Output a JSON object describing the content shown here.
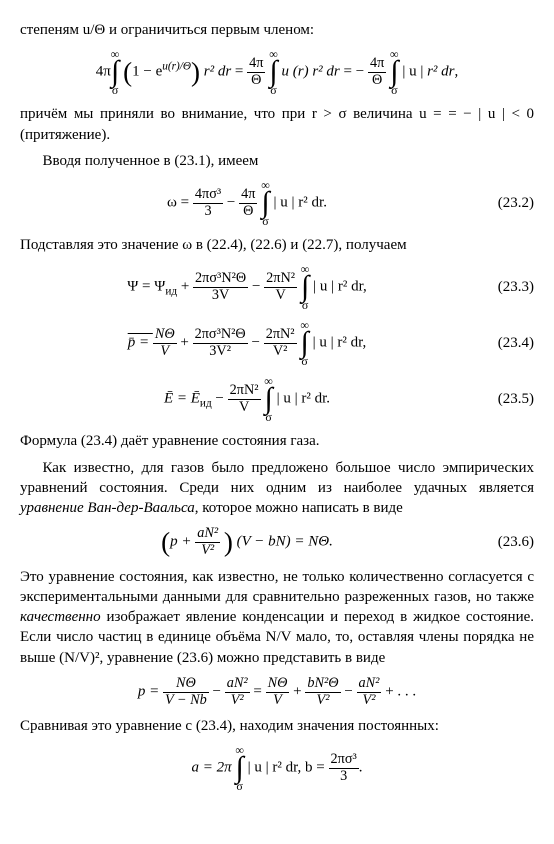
{
  "para1": "степеням u/Θ и ограничиться первым членом:",
  "eq1": {
    "lhs_pref": "4π",
    "int_top": "∞",
    "int_bot": "σ",
    "paren_in": "1 − e",
    "exp": "u(r)/Θ",
    "r2dr": "r² dr",
    "mid": " = ",
    "frac_a_num": "4π",
    "frac_a_den": "Θ",
    "u_r": "u (r)",
    "eqm": " = −",
    "abs_u": "| u |"
  },
  "para2a": "причём мы приняли во внимание, что при r > σ величина u = = − | u | < 0 (притяжение).",
  "para2b": "Вводя полученное в (23.1), имеем",
  "eq2": {
    "omega": "ω = ",
    "f1_num": "4πσ³",
    "f1_den": "3",
    "minus": " − ",
    "f2_num": "4π",
    "f2_den": "Θ",
    "int_top": "∞",
    "int_bot": "σ",
    "tail": "| u | r² dr.",
    "num": "(23.2)"
  },
  "para3": "Подставляя это значение ω в (22.4), (22.6) и (22.7), получаем",
  "eq3": {
    "lhs": "Ψ = Ψ",
    "sub": "ид",
    "plus": " + ",
    "f1_num": "2πσ³N²Θ",
    "f1_den": "3V",
    "minus": " − ",
    "f2_num": "2πN²",
    "f2_den": "V",
    "int_top": "∞",
    "int_bot": "σ",
    "tail": "| u | r² dr,",
    "num": "(23.3)"
  },
  "eq4": {
    "lhs": "p̄ = ",
    "f0_num": "NΘ",
    "f0_den": "V",
    "plus": " + ",
    "f1_num": "2πσ³N²Θ",
    "f1_den": "3V²",
    "minus": " − ",
    "f2_num": "2πN²",
    "f2_den": "V²",
    "int_top": "∞",
    "int_bot": "σ",
    "tail": "| u | r² dr,",
    "num": "(23.4)"
  },
  "eq5": {
    "lhs": "Ē = Ē",
    "sub": "ид",
    "minus": " − ",
    "f2_num": "2πN²",
    "f2_den": "V",
    "int_top": "∞",
    "int_bot": "σ",
    "tail": "| u | r² dr.",
    "num": "(23.5)"
  },
  "para4": "Формула (23.4) даёт уравнение состояния газа.",
  "para5a": "Как известно, для газов было предложено большое число эмпирических уравнений состояния. Среди них одним из наиболее удачных является ",
  "para5em": "уравнение Ван-дер-Ваальса",
  "para5b": ", которое можно написать в виде",
  "eq6": {
    "pref": "p + ",
    "f_num": "aN²",
    "f_den": "V²",
    "mid": "(V − bN) = NΘ.",
    "num": "(23.6)"
  },
  "para6a": "Это уравнение состояния, как известно, не только количественно согласуется с экспериментальными данными для сравнительно разреженных газов, но также ",
  "para6em": "качественно",
  "para6b": " изображает явление конденсации и переход в жидкое состояние. Если число частиц в единице объёма N/V мало, то, оставляя члены порядка не выше (N/V)², уравнение (23.6) можно представить в виде",
  "eq7": {
    "lhs": "p = ",
    "f1_num": "NΘ",
    "f1_den": "V − Nb",
    "minus1": " − ",
    "f2_num": "aN²",
    "f2_den": "V²",
    "eq": " = ",
    "f3_num": "NΘ",
    "f3_den": "V",
    "plus": " + ",
    "f4_num": "bN²Θ",
    "f4_den": "V²",
    "minus2": " − ",
    "f5_num": "aN²",
    "f5_den": "V²",
    "tail": " + . . ."
  },
  "para7": "Сравнивая это уравнение с (23.4), находим значения постоянных:",
  "eq8": {
    "a_eq": "a = 2π",
    "int_top": "∞",
    "int_bot": "σ",
    "tail": "| u | r² dr,    b = ",
    "f_num": "2πσ³",
    "f_den": "3",
    "dot": "."
  }
}
